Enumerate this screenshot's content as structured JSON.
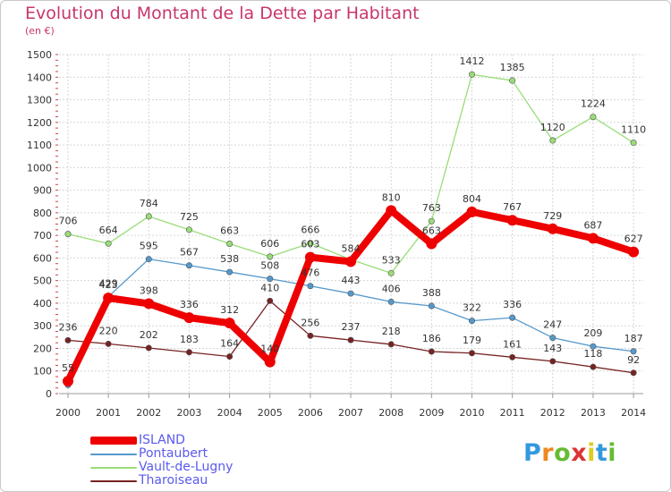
{
  "chart_data": {
    "type": "line",
    "title": "Evolution du Montant de la Dette par Habitant",
    "subtitle": "(en €)",
    "xlabel": "",
    "ylabel": "",
    "ylim": [
      0,
      1500
    ],
    "yticks": [
      "0",
      "100",
      "200",
      "300",
      "400",
      "500",
      "600",
      "700",
      "800",
      "900",
      "1000",
      "1100",
      "1200",
      "1300",
      "1400",
      "1500"
    ],
    "x": [
      "2000",
      "2001",
      "2002",
      "2003",
      "2004",
      "2005",
      "2006",
      "2007",
      "2008",
      "2009",
      "2010",
      "2011",
      "2012",
      "2013",
      "2014"
    ],
    "grid": true,
    "legend_position": "bottom-left",
    "series": [
      {
        "name": "Vault-de-Lugny",
        "color": "#99dd77",
        "values": [
          706,
          664,
          784,
          725,
          663,
          606,
          666,
          593,
          533,
          763,
          1412,
          1385,
          1120,
          1224,
          1110
        ],
        "labels": [
          "706",
          "664",
          "784",
          "725",
          "663",
          "606",
          "666",
          "",
          "533",
          "763",
          "1412",
          "1385",
          "1120",
          "1224",
          "1110"
        ]
      },
      {
        "name": "Pontaubert",
        "color": "#5599cc",
        "values": [
          38,
          429,
          595,
          567,
          538,
          508,
          476,
          443,
          406,
          388,
          322,
          336,
          247,
          209,
          187
        ],
        "labels": [
          "",
          "429",
          "595",
          "567",
          "538",
          "508",
          "476",
          "443",
          "406",
          "388",
          "322",
          "336",
          "247",
          "209",
          "187"
        ]
      },
      {
        "name": "Tharoiseau",
        "color": "#772222",
        "values": [
          236,
          220,
          202,
          183,
          164,
          410,
          256,
          237,
          218,
          186,
          179,
          161,
          143,
          118,
          92
        ],
        "labels": [
          "236",
          "220",
          "202",
          "183",
          "164",
          "410",
          "256",
          "237",
          "218",
          "186",
          "179",
          "161",
          "143",
          "118",
          "92"
        ]
      },
      {
        "name": "ISLAND",
        "color": "#ee0000",
        "values": [
          55,
          423,
          398,
          336,
          312,
          140,
          603,
          584,
          810,
          663,
          804,
          767,
          729,
          687,
          627
        ],
        "labels": [
          "55",
          "423",
          "398",
          "336",
          "312",
          "140",
          "603",
          "584",
          "810",
          "663",
          "804",
          "767",
          "729",
          "687",
          "627"
        ]
      }
    ],
    "legend_order": [
      "ISLAND",
      "Pontaubert",
      "Vault-de-Lugny",
      "Tharoiseau"
    ]
  },
  "logo": {
    "letters": [
      "P",
      "r",
      "o",
      "x",
      "i",
      "t",
      "i"
    ],
    "colors": [
      "#3399dd",
      "#ee8822",
      "#66bb33",
      "#dd3333",
      "#ddcc22",
      "#3399dd",
      "#66bb33"
    ]
  }
}
